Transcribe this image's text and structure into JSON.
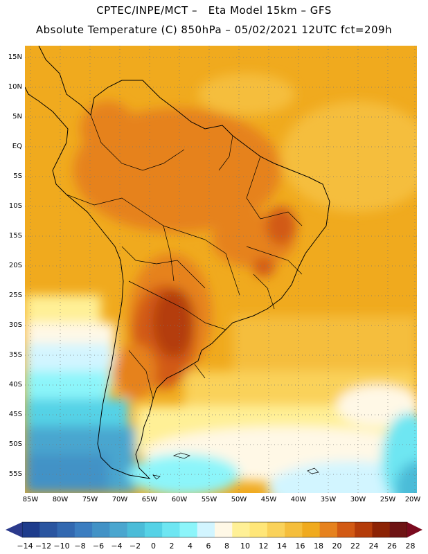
{
  "header": {
    "line1": "CPTEC/INPE/MCT –   Eta Model 15km – GFS",
    "line2": "Absolute Temperature (C) 850hPa – 05/02/2021 12UTC fct=209h"
  },
  "map": {
    "region": "South America",
    "latitude_labels": [
      "15N",
      "10N",
      "5N",
      "EQ",
      "5S",
      "10S",
      "15S",
      "20S",
      "25S",
      "30S",
      "35S",
      "40S",
      "45S",
      "50S",
      "55S"
    ],
    "longitude_labels": [
      "85W",
      "80W",
      "75W",
      "70W",
      "65W",
      "60W",
      "55W",
      "50W",
      "45W",
      "40W",
      "35W",
      "30W",
      "25W",
      "20W"
    ],
    "gridline_style": "dotted"
  },
  "colorbar": {
    "labels": [
      "-14",
      "-12",
      "-10",
      "-8",
      "-6",
      "-4",
      "-2",
      "0",
      "2",
      "4",
      "6",
      "8",
      "10",
      "12",
      "14",
      "16",
      "18",
      "20",
      "22",
      "24",
      "26",
      "28"
    ],
    "colors": [
      "#1e3c8c",
      "#2a55a0",
      "#3268b0",
      "#3b7dc0",
      "#4292c6",
      "#4aa6cf",
      "#4bbcd8",
      "#55d2e6",
      "#6ee6f2",
      "#8cf5fa",
      "#d2f5ff",
      "#fff8e6",
      "#fff096",
      "#ffe678",
      "#fad25a",
      "#f5be3c",
      "#f0aa1e",
      "#e6821e",
      "#d25a14",
      "#b43c0a",
      "#8c2305",
      "#6e1414"
    ],
    "under_color": "#2b3a8c",
    "over_color": "#7a0a1e"
  },
  "colors": {
    "ocean_north": "#f5b532",
    "continent_hot": "#e6821e",
    "continent_hotter": "#d25a14",
    "ocean_cold": "#55c8e6",
    "coastline": "#000000"
  }
}
